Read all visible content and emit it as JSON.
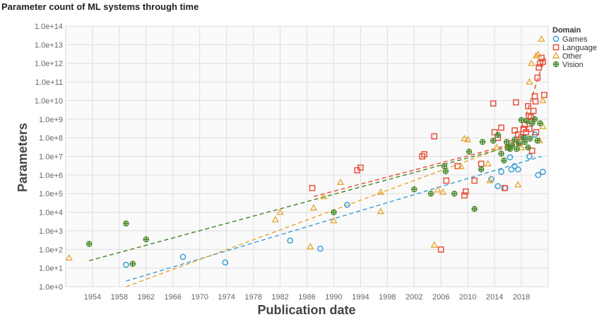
{
  "chart_data": {
    "type": "scatter",
    "title": "Parameter count of ML systems through time",
    "xlabel": "Publication date",
    "ylabel": "Parameters",
    "log_y": true,
    "grid": true,
    "legend_position": "top-right",
    "legend_title": "Domain",
    "xlim": [
      1950,
      2022
    ],
    "ylim_exponents": [
      0,
      14
    ],
    "x_ticks": [
      1954,
      1958,
      1962,
      1966,
      1970,
      1974,
      1978,
      1982,
      1986,
      1990,
      1994,
      1998,
      2002,
      2006,
      2010,
      2014,
      2018
    ],
    "y_tick_labels": [
      "1.0e+0",
      "1.0e+1",
      "1.0e+2",
      "1.0e+3",
      "1.0e+4",
      "1.0e+5",
      "1.0e+6",
      "1.0e+7",
      "1.0e+8",
      "1.0e+9",
      "1.0e+10",
      "1.0e+11",
      "1.0e+12",
      "1.0e+13",
      "1.0e+14"
    ],
    "series": [
      {
        "name": "Games",
        "color": "#3a9fd6",
        "marker": "circle",
        "points": [
          [
            1959.0,
            15
          ],
          [
            1967.5,
            40
          ],
          [
            1973.8,
            20
          ],
          [
            1983.5,
            300
          ],
          [
            1988.0,
            110
          ],
          [
            1992.0,
            25000
          ],
          [
            2013.5,
            600000
          ],
          [
            2014.5,
            250000
          ],
          [
            2015.0,
            1500000
          ],
          [
            2015.6,
            200000
          ],
          [
            2016.3,
            9000000
          ],
          [
            2016.5,
            2000000
          ],
          [
            2017.0,
            3000000
          ],
          [
            2017.5,
            2000000
          ],
          [
            2018.5,
            100000000
          ],
          [
            2019.2,
            10000000
          ],
          [
            2020.0,
            150000000
          ],
          [
            2020.5,
            1000000
          ],
          [
            2021.2,
            1500000
          ]
        ],
        "trend": [
          [
            1959,
            2
          ],
          [
            2021,
            10000000
          ]
        ]
      },
      {
        "name": "Language",
        "color": "#e8513a",
        "marker": "square",
        "points": [
          [
            1986.8,
            200000
          ],
          [
            1993.5,
            1800000
          ],
          [
            1994.0,
            2500000
          ],
          [
            2003.2,
            10000000
          ],
          [
            2003.5,
            13000000
          ],
          [
            2005.0,
            120000000
          ],
          [
            2006.0,
            100
          ],
          [
            2006.8,
            500000
          ],
          [
            2008.5,
            3000000
          ],
          [
            2009.5,
            80000
          ],
          [
            2009.7,
            130000
          ],
          [
            2011.0,
            500000
          ],
          [
            2012.0,
            4000000
          ],
          [
            2013.8,
            7000000000
          ],
          [
            2014.0,
            200000000
          ],
          [
            2014.5,
            100000000
          ],
          [
            2015.0,
            350000000
          ],
          [
            2015.5,
            200000
          ],
          [
            2016.0,
            30000000
          ],
          [
            2016.5,
            50000000
          ],
          [
            2017.0,
            250000000
          ],
          [
            2017.2,
            8000000000
          ],
          [
            2017.5,
            150000000
          ],
          [
            2017.8,
            60000000
          ],
          [
            2018.0,
            110000000
          ],
          [
            2018.3,
            300000000
          ],
          [
            2018.5,
            500000000
          ],
          [
            2018.7,
            200000000
          ],
          [
            2019.0,
            5000000000
          ],
          [
            2019.1,
            1500000000
          ],
          [
            2019.2,
            300000000
          ],
          [
            2019.4,
            1300000000
          ],
          [
            2019.5,
            800000000
          ],
          [
            2019.6,
            20000000
          ],
          [
            2019.8,
            2800000000
          ],
          [
            2020.0,
            17000000000
          ],
          [
            2020.1,
            9000000000
          ],
          [
            2020.2,
            200000000
          ],
          [
            2020.4,
            170000000000
          ],
          [
            2020.6,
            600000000000
          ],
          [
            2020.8,
            1000000000000
          ],
          [
            2021.0,
            2000000000000
          ],
          [
            2021.2,
            1200000000000
          ],
          [
            2021.4,
            20000000000
          ]
        ],
        "trend": [
          [
            1987,
            70000
          ],
          [
            2017,
            50000000
          ]
        ],
        "trend2": [
          [
            2018,
            300000000
          ],
          [
            2021.5,
            2000000000000
          ]
        ]
      },
      {
        "name": "Other",
        "color": "#e8a93a",
        "marker": "triangle",
        "points": [
          [
            1950.5,
            35
          ],
          [
            1981.3,
            4000
          ],
          [
            1982.0,
            10000
          ],
          [
            1986.5,
            140
          ],
          [
            1987.0,
            17000
          ],
          [
            1988.5,
            70000
          ],
          [
            1990.0,
            3500
          ],
          [
            1991.0,
            400000
          ],
          [
            1997.0,
            11000
          ],
          [
            1997.0,
            120000
          ],
          [
            2005.0,
            170
          ],
          [
            2005.5,
            160000
          ],
          [
            2006.3,
            120000
          ],
          [
            2009.0,
            2800000
          ],
          [
            2009.5,
            90000000
          ],
          [
            2010.0,
            80000000
          ],
          [
            2013.0,
            4000000
          ],
          [
            2013.3,
            500000
          ],
          [
            2014.3,
            30000000
          ],
          [
            2017.5,
            300000
          ],
          [
            2018.0,
            30000000
          ],
          [
            2019.2,
            100000000000
          ],
          [
            2019.5,
            1000000000000
          ],
          [
            2020.2,
            2500000000000
          ],
          [
            2020.5,
            3000000000000
          ],
          [
            2021.0,
            20000000000000
          ],
          [
            2021.2,
            10000000000
          ],
          [
            2021.2,
            400000000
          ],
          [
            2020.7,
            70000000
          ]
        ],
        "trend": [
          [
            1959,
            1
          ],
          [
            2017,
            50000000
          ]
        ]
      },
      {
        "name": "Vision",
        "color": "#4a8a2e",
        "marker": "plus-circle",
        "points": [
          [
            1953.5,
            200
          ],
          [
            1959.0,
            2500
          ],
          [
            1960.0,
            17
          ],
          [
            1962.0,
            350
          ],
          [
            1990.0,
            10000
          ],
          [
            2002.0,
            170000
          ],
          [
            2004.5,
            100000
          ],
          [
            2006.5,
            3000000
          ],
          [
            2006.7,
            1600000
          ],
          [
            2008.0,
            100000
          ],
          [
            2010.2,
            18000000
          ],
          [
            2011.0,
            15000
          ],
          [
            2012.0,
            2000000
          ],
          [
            2012.2,
            60000000
          ],
          [
            2013.8,
            70000000
          ],
          [
            2014.5,
            140000000
          ],
          [
            2015.0,
            14000000
          ],
          [
            2015.4,
            6000000
          ],
          [
            2015.8,
            60000000
          ],
          [
            2016.0,
            30000000
          ],
          [
            2016.3,
            25000000
          ],
          [
            2016.6,
            40000000
          ],
          [
            2017.0,
            80000000
          ],
          [
            2017.3,
            25000000
          ],
          [
            2017.6,
            50000000
          ],
          [
            2018.0,
            900000000
          ],
          [
            2018.3,
            100000000
          ],
          [
            2018.5,
            60000000
          ],
          [
            2018.8,
            800000000
          ],
          [
            2019.0,
            30000000
          ],
          [
            2019.3,
            90000000
          ],
          [
            2019.6,
            600000000
          ],
          [
            2020.0,
            1000000000
          ],
          [
            2020.4,
            70000000
          ],
          [
            2020.8,
            600000000
          ]
        ],
        "trend": [
          [
            1953.5,
            25
          ],
          [
            2017,
            40000000
          ]
        ]
      }
    ]
  }
}
